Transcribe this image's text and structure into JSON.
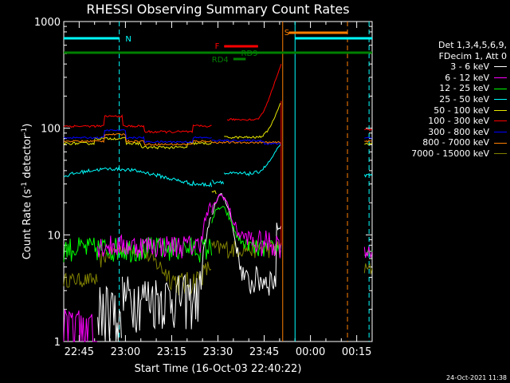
{
  "chart_data": {
    "type": "line",
    "title": "RHESSI Observing Summary Count Rates",
    "xlabel": "Start Time (16-Oct-03 22:40:22)",
    "ylabel": "Count Rate (s",
    "ylabel_sup": "-1",
    "ylabel_tail": " detector",
    "ylabel_sup2": "-1",
    "ylabel_end": ")",
    "yscale": "log",
    "ylim": [
      1,
      1000
    ],
    "y_ticks": [
      1,
      10,
      100,
      1000
    ],
    "y_tick_labels": [
      "1",
      "10",
      "100",
      "1000"
    ],
    "x_unit": "minutes since 22:40",
    "xlim": [
      0,
      100
    ],
    "x_ticks": [
      5,
      20,
      35,
      50,
      65,
      80,
      95
    ],
    "x_tick_labels": [
      "22:45",
      "23:00",
      "23:15",
      "23:30",
      "23:45",
      "00:00",
      "00:15"
    ],
    "legend_header": [
      "Det 1,3,4,5,6,9,",
      "FDecim 1, Att 0"
    ],
    "legend_position": "right",
    "series": [
      {
        "name": "3 - 6 keV",
        "color": "#ffffff"
      },
      {
        "name": "6 - 12 keV",
        "color": "#ff00ff"
      },
      {
        "name": "12 - 25 keV",
        "color": "#00ff00"
      },
      {
        "name": "25 - 50 keV",
        "color": "#00ffff"
      },
      {
        "name": "50 - 100 keV",
        "color": "#e8e800"
      },
      {
        "name": "100 - 300 keV",
        "color": "#ff0000"
      },
      {
        "name": "300 - 800 keV",
        "color": "#0000ff"
      },
      {
        "name": "800 - 7000 keV",
        "color": "#ff8000"
      },
      {
        "name": "7000 - 15000 keV",
        "color": "#808000"
      }
    ],
    "flag_labels": [
      {
        "text": "N",
        "color": "#00ffff"
      },
      {
        "text": "F",
        "color": "#ff0000"
      },
      {
        "text": "RD9",
        "color": "#008000"
      },
      {
        "text": "RD4",
        "color": "#008000"
      },
      {
        "text": "S",
        "color": "#ff8000"
      }
    ]
  },
  "footer": "24-Oct-2021 11:38"
}
